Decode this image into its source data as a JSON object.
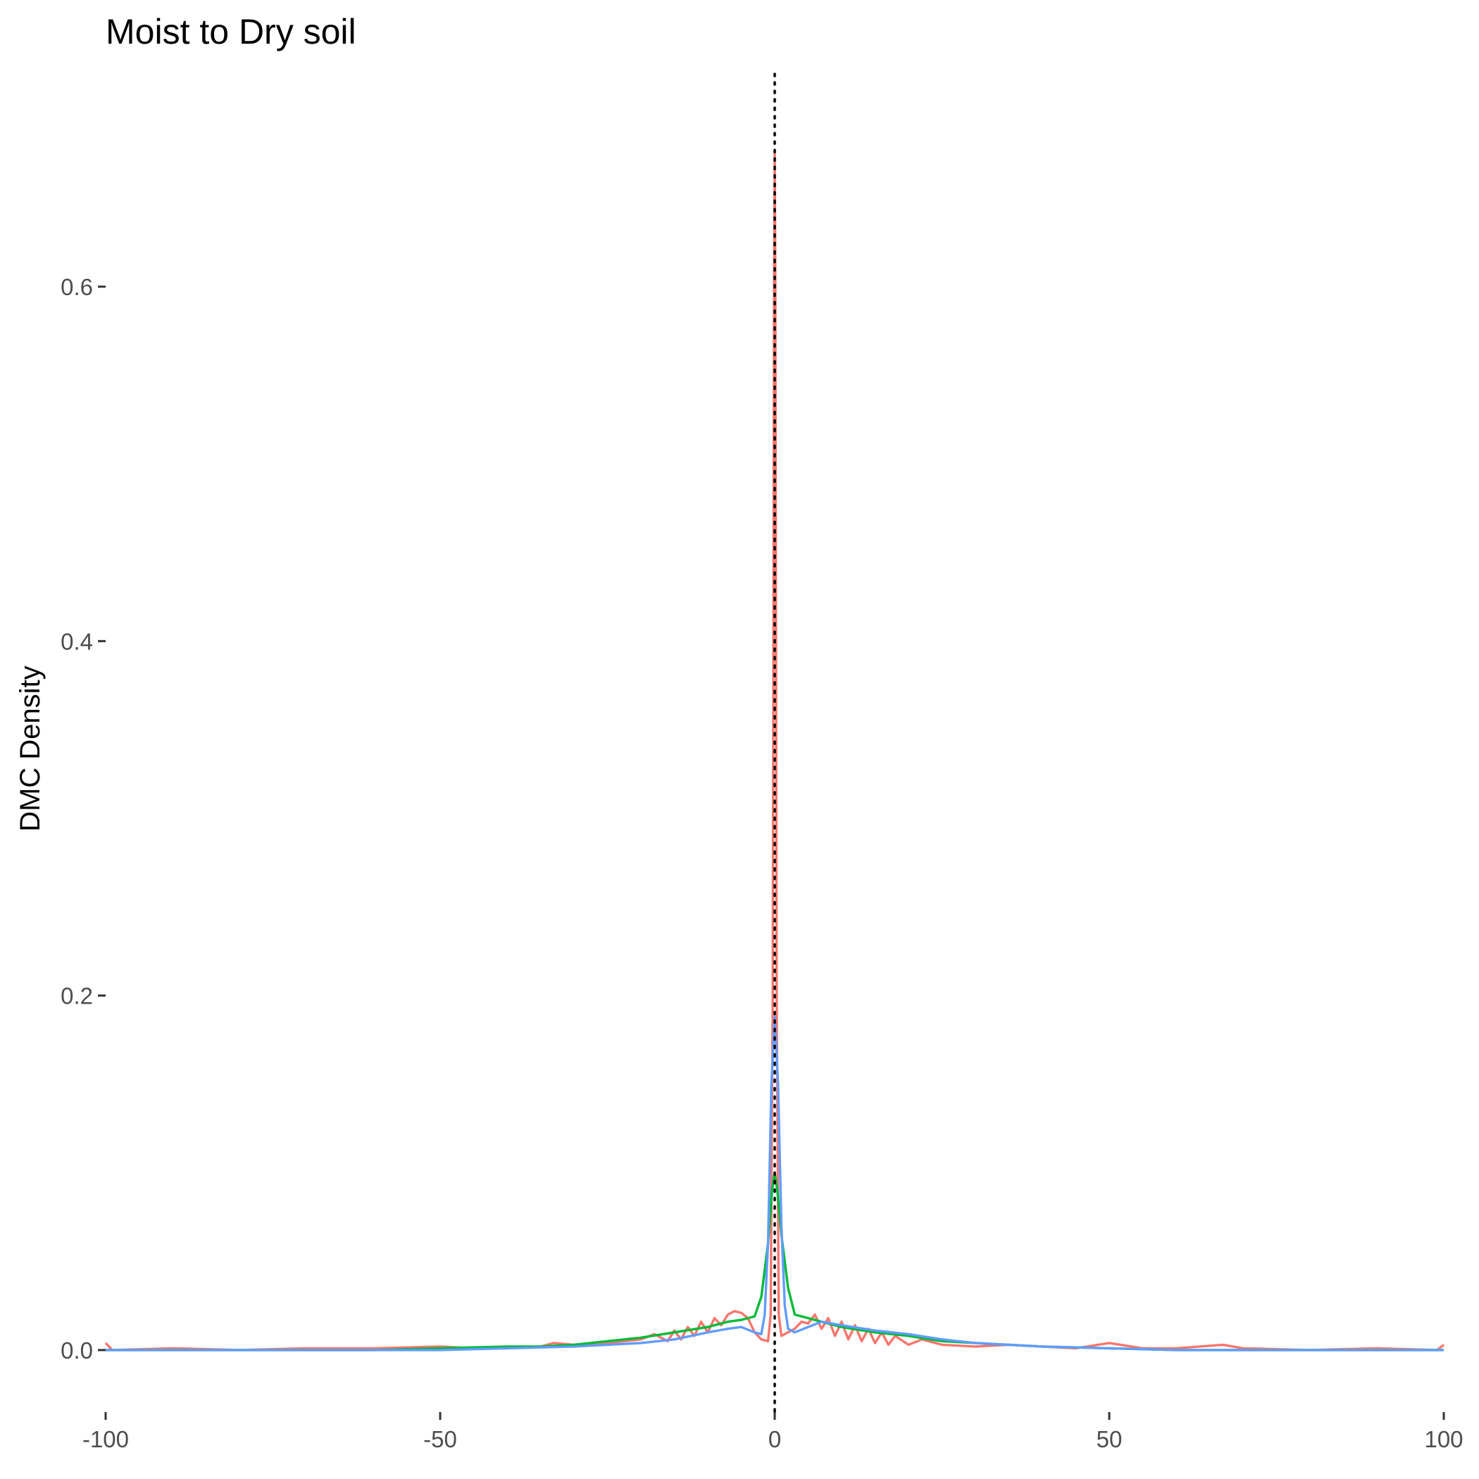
{
  "chart_data": {
    "type": "line",
    "title": "Moist to Dry soil",
    "xlabel": "",
    "ylabel": "DMC Density",
    "xlim": [
      -100,
      100
    ],
    "ylim": [
      -0.035,
      0.72
    ],
    "x_ticks": [
      -100,
      -50,
      0,
      50,
      100
    ],
    "x_tick_labels": [
      "-100",
      "-50",
      "0",
      "50",
      "100"
    ],
    "y_ticks": [
      0.0,
      0.2,
      0.4,
      0.6
    ],
    "y_tick_labels": [
      "0.0",
      "0.2",
      "0.4",
      "0.6"
    ],
    "grid": false,
    "legend": "none",
    "reference_line": {
      "x": 0,
      "style": "dotted",
      "color": "#000000"
    },
    "series": [
      {
        "color": "#F8766D",
        "points": [
          [
            -100,
            0.004
          ],
          [
            -99,
            0.0
          ],
          [
            -90,
            0.001
          ],
          [
            -80,
            0.0
          ],
          [
            -70,
            0.001
          ],
          [
            -60,
            0.001
          ],
          [
            -50,
            0.002
          ],
          [
            -45,
            0.001
          ],
          [
            -40,
            0.001
          ],
          [
            -35,
            0.002
          ],
          [
            -33,
            0.004
          ],
          [
            -30,
            0.003
          ],
          [
            -25,
            0.004
          ],
          [
            -20,
            0.006
          ],
          [
            -18,
            0.009
          ],
          [
            -16,
            0.005
          ],
          [
            -15,
            0.011
          ],
          [
            -14,
            0.006
          ],
          [
            -13,
            0.013
          ],
          [
            -12,
            0.008
          ],
          [
            -11,
            0.016
          ],
          [
            -10,
            0.01
          ],
          [
            -9,
            0.018
          ],
          [
            -8,
            0.014
          ],
          [
            -7,
            0.02
          ],
          [
            -6,
            0.022
          ],
          [
            -5,
            0.021
          ],
          [
            -4,
            0.018
          ],
          [
            -3,
            0.01
          ],
          [
            -2,
            0.006
          ],
          [
            -1,
            0.005
          ],
          [
            -0.6,
            0.02
          ],
          [
            -0.3,
            0.2
          ],
          [
            -0.1,
            0.6
          ],
          [
            0,
            0.675
          ],
          [
            0.1,
            0.6
          ],
          [
            0.3,
            0.2
          ],
          [
            0.6,
            0.02
          ],
          [
            1,
            0.008
          ],
          [
            2,
            0.01
          ],
          [
            3,
            0.012
          ],
          [
            4,
            0.016
          ],
          [
            5,
            0.015
          ],
          [
            6,
            0.02
          ],
          [
            7,
            0.012
          ],
          [
            8,
            0.018
          ],
          [
            9,
            0.008
          ],
          [
            10,
            0.016
          ],
          [
            11,
            0.006
          ],
          [
            12,
            0.014
          ],
          [
            13,
            0.005
          ],
          [
            14,
            0.012
          ],
          [
            15,
            0.004
          ],
          [
            16,
            0.01
          ],
          [
            17,
            0.003
          ],
          [
            18,
            0.008
          ],
          [
            20,
            0.003
          ],
          [
            22,
            0.006
          ],
          [
            25,
            0.003
          ],
          [
            30,
            0.002
          ],
          [
            35,
            0.003
          ],
          [
            40,
            0.002
          ],
          [
            45,
            0.001
          ],
          [
            50,
            0.004
          ],
          [
            55,
            0.001
          ],
          [
            60,
            0.001
          ],
          [
            67,
            0.003
          ],
          [
            70,
            0.001
          ],
          [
            80,
            0.0
          ],
          [
            90,
            0.001
          ],
          [
            99,
            0.0
          ],
          [
            100,
            0.003
          ]
        ]
      },
      {
        "color": "#00BA38",
        "points": [
          [
            -100,
            0.0
          ],
          [
            -80,
            0.0
          ],
          [
            -60,
            0.0
          ],
          [
            -50,
            0.001
          ],
          [
            -40,
            0.002
          ],
          [
            -35,
            0.002
          ],
          [
            -30,
            0.003
          ],
          [
            -25,
            0.005
          ],
          [
            -20,
            0.007
          ],
          [
            -15,
            0.01
          ],
          [
            -10,
            0.013
          ],
          [
            -7,
            0.016
          ],
          [
            -5,
            0.017
          ],
          [
            -3,
            0.019
          ],
          [
            -2,
            0.03
          ],
          [
            -1,
            0.06
          ],
          [
            -0.4,
            0.09
          ],
          [
            0,
            0.1
          ],
          [
            0.4,
            0.09
          ],
          [
            1,
            0.065
          ],
          [
            2,
            0.035
          ],
          [
            3,
            0.02
          ],
          [
            5,
            0.018
          ],
          [
            7,
            0.016
          ],
          [
            10,
            0.013
          ],
          [
            15,
            0.01
          ],
          [
            20,
            0.008
          ],
          [
            25,
            0.005
          ],
          [
            30,
            0.004
          ],
          [
            35,
            0.003
          ],
          [
            40,
            0.002
          ],
          [
            50,
            0.001
          ],
          [
            60,
            0.0
          ],
          [
            80,
            0.0
          ],
          [
            100,
            0.0
          ]
        ]
      },
      {
        "color": "#619CFF",
        "points": [
          [
            -100,
            0.0
          ],
          [
            -80,
            0.0
          ],
          [
            -60,
            0.0
          ],
          [
            -50,
            0.0
          ],
          [
            -40,
            0.001
          ],
          [
            -30,
            0.002
          ],
          [
            -25,
            0.003
          ],
          [
            -20,
            0.004
          ],
          [
            -15,
            0.006
          ],
          [
            -10,
            0.01
          ],
          [
            -7,
            0.012
          ],
          [
            -5,
            0.013
          ],
          [
            -3,
            0.01
          ],
          [
            -2,
            0.009
          ],
          [
            -1.5,
            0.02
          ],
          [
            -1,
            0.06
          ],
          [
            -0.5,
            0.15
          ],
          [
            0,
            0.188
          ],
          [
            0.5,
            0.15
          ],
          [
            1,
            0.07
          ],
          [
            1.5,
            0.025
          ],
          [
            2,
            0.012
          ],
          [
            3,
            0.01
          ],
          [
            5,
            0.013
          ],
          [
            7,
            0.016
          ],
          [
            10,
            0.014
          ],
          [
            15,
            0.011
          ],
          [
            20,
            0.009
          ],
          [
            25,
            0.006
          ],
          [
            30,
            0.004
          ],
          [
            35,
            0.003
          ],
          [
            40,
            0.002
          ],
          [
            50,
            0.001
          ],
          [
            60,
            0.0
          ],
          [
            80,
            0.0
          ],
          [
            100,
            0.0
          ]
        ]
      }
    ]
  }
}
